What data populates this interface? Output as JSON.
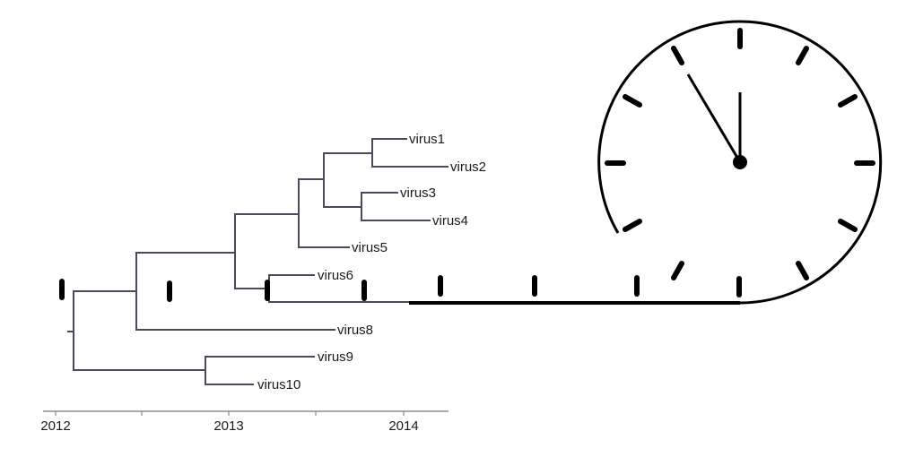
{
  "tree": {
    "tips": [
      "virus1",
      "virus2",
      "virus3",
      "virus4",
      "virus5",
      "virus6",
      "virus8",
      "virus9",
      "virus10"
    ]
  },
  "axis": {
    "labels": [
      "2012",
      "2013",
      "2014"
    ]
  }
}
